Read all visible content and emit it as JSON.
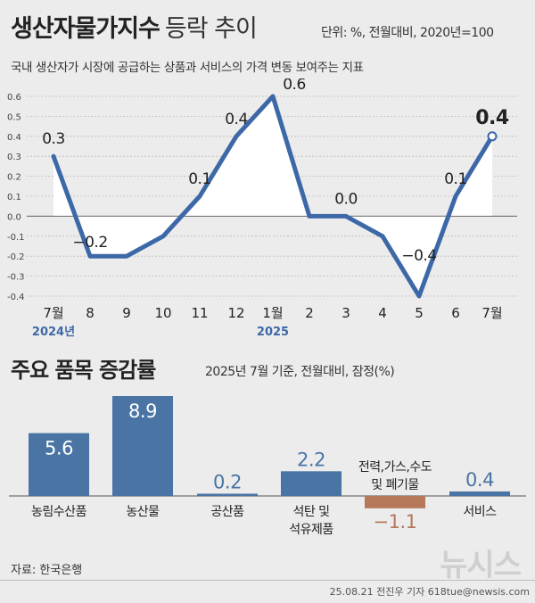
{
  "header": {
    "title": "생산자물가지수",
    "title_sub": "등락 추이",
    "unit": "단위: %, 전월대비, 2020년=100",
    "description": "국내 생산자가 시장에 공급하는 상품과 서비스의 가격 변동 보여주는 지표"
  },
  "section2": {
    "title": "주요 품목 증감률",
    "subtitle": "2025년 7월 기준, 전월대비, 잠정(%)"
  },
  "footer": {
    "source": "자료: 한국은행",
    "credit": "25.08.21 전진우 기자 618tue@newsis.com",
    "watermark": "뉴시스"
  },
  "colors": {
    "line": "#3d68a8",
    "bar_positive": "#4a74a4",
    "bar_negative": "#b5795a",
    "area_fill": "#ffffff",
    "background": "#ececec"
  },
  "chart_data": [
    {
      "type": "line",
      "categories": [
        "7월",
        "8",
        "9",
        "10",
        "11",
        "12",
        "1월",
        "2",
        "3",
        "4",
        "5",
        "6",
        "7월"
      ],
      "category_sublabels": {
        "0": "2024년",
        "6": "2025"
      },
      "values": [
        0.3,
        -0.2,
        -0.2,
        -0.1,
        0.1,
        0.4,
        0.6,
        0.0,
        0.0,
        -0.1,
        -0.4,
        0.1,
        0.4
      ],
      "data_labels": {
        "0": "0.3",
        "1": "−0.2",
        "4": "0.1",
        "5": "0.4",
        "6": "0.6",
        "8": "0.0",
        "10": "−0.4",
        "11": "0.1",
        "12": "0.4"
      },
      "yticks": [
        "0.6",
        "0.5",
        "0.4",
        "0.3",
        "0.2",
        "0.1",
        "0.0",
        "-0.1",
        "-0.2",
        "-0.3",
        "-0.4"
      ],
      "ylim": [
        -0.4,
        0.6
      ],
      "grid": true
    },
    {
      "type": "bar",
      "categories": [
        {
          "label": [
            "농림수산품"
          ]
        },
        {
          "label": [
            "농산물"
          ]
        },
        {
          "label": [
            "공산품"
          ]
        },
        {
          "label": [
            "석탄 및",
            "석유제품"
          ]
        },
        {
          "label": [
            "전력,가스,수도",
            "및 폐기물"
          ]
        },
        {
          "label": [
            "서비스"
          ]
        }
      ],
      "values": [
        5.6,
        8.9,
        0.2,
        2.2,
        -1.1,
        0.4
      ],
      "value_labels": [
        "5.6",
        "8.9",
        "0.2",
        "2.2",
        "−1.1",
        "0.4"
      ]
    }
  ]
}
